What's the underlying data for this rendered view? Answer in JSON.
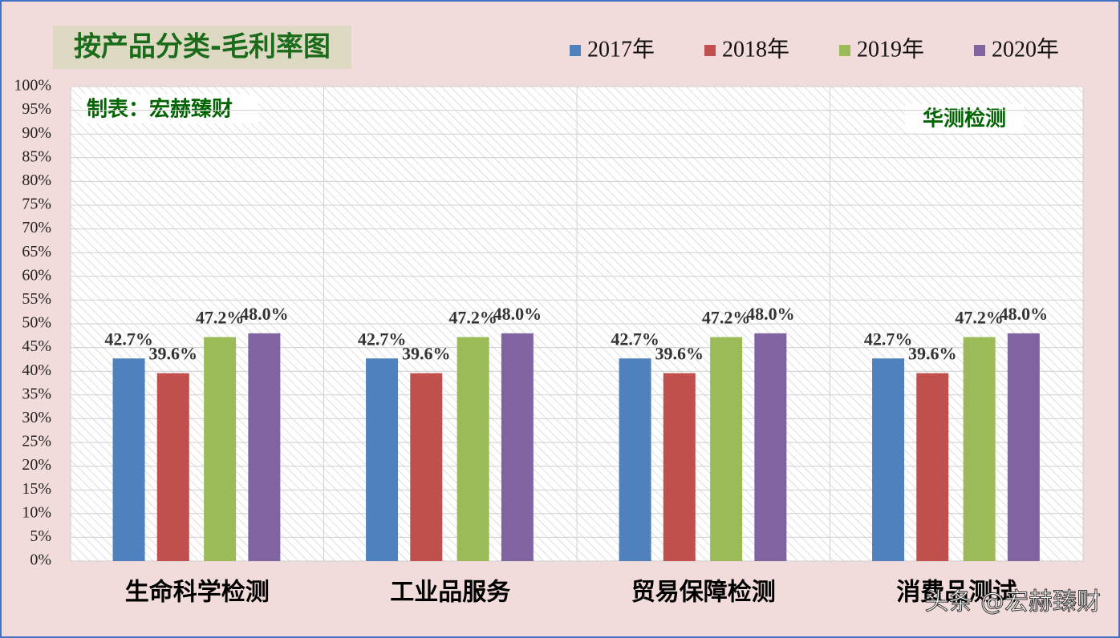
{
  "chart_data": {
    "type": "bar",
    "title": "按产品分类-毛利率图",
    "annotations": [
      "制表：宏赫臻财",
      "华测检测",
      "头条 @宏赫臻财"
    ],
    "categories": [
      "生命科学检测",
      "工业品服务",
      "贸易保障检测",
      "消费品测试"
    ],
    "series": [
      {
        "name": "2017年",
        "color": "#4f81bd",
        "values": [
          42.7,
          42.7,
          42.7,
          42.7
        ],
        "value_labels": [
          "42.7%",
          "42.7%",
          "42.7%",
          "42.7%"
        ]
      },
      {
        "name": "2018年",
        "color": "#c0504d",
        "values": [
          39.6,
          39.6,
          39.6,
          39.6
        ],
        "value_labels": [
          "39.6%",
          "39.6%",
          "39.6%",
          "39.6%"
        ]
      },
      {
        "name": "2019年",
        "color": "#9bbb59",
        "values": [
          47.2,
          47.2,
          47.2,
          47.2
        ],
        "value_labels": [
          "47.2%",
          "47.2%",
          "47.2%",
          "47.2%"
        ]
      },
      {
        "name": "2020年",
        "color": "#8064a2",
        "values": [
          48.0,
          48.0,
          48.0,
          48.0
        ],
        "value_labels": [
          "48.0%",
          "48.0%",
          "48.0%",
          "48.0%"
        ]
      }
    ],
    "ylim": [
      0,
      100
    ],
    "yticks": [
      {
        "value": 0,
        "label": "0%"
      },
      {
        "value": 5,
        "label": "5%"
      },
      {
        "value": 10,
        "label": "10%"
      },
      {
        "value": 15,
        "label": "15%"
      },
      {
        "value": 20,
        "label": "20%"
      },
      {
        "value": 25,
        "label": "25%"
      },
      {
        "value": 30,
        "label": "30%"
      },
      {
        "value": 35,
        "label": "35%"
      },
      {
        "value": 40,
        "label": "40%"
      },
      {
        "value": 45,
        "label": "45%"
      },
      {
        "value": 50,
        "label": "50%"
      },
      {
        "value": 55,
        "label": "55%"
      },
      {
        "value": 60,
        "label": "60%"
      },
      {
        "value": 65,
        "label": "65%"
      },
      {
        "value": 70,
        "label": "70%"
      },
      {
        "value": 75,
        "label": "75%"
      },
      {
        "value": 80,
        "label": "80%"
      },
      {
        "value": 85,
        "label": "85%"
      },
      {
        "value": 90,
        "label": "90%"
      },
      {
        "value": 95,
        "label": "95%"
      },
      {
        "value": 100,
        "label": "100%"
      }
    ],
    "grid": true
  }
}
